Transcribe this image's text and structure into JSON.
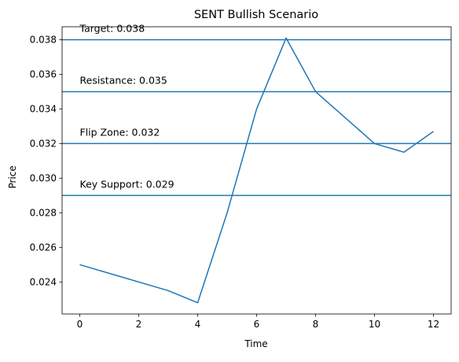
{
  "chart_data": {
    "type": "line",
    "title": "SENT Bullish Scenario",
    "xlabel": "Time",
    "ylabel": "Price",
    "x": [
      0,
      3,
      4,
      5,
      6,
      7,
      8,
      10,
      11,
      12
    ],
    "series": [
      {
        "values": [
          0.025,
          0.0235,
          0.0228,
          0.028,
          0.034,
          0.0381,
          0.035,
          0.032,
          0.0315,
          0.0327
        ]
      }
    ],
    "hlines": [
      {
        "value": 0.038,
        "label": "Target: 0.038"
      },
      {
        "value": 0.035,
        "label": "Resistance: 0.035"
      },
      {
        "value": 0.032,
        "label": "Flip Zone: 0.032"
      },
      {
        "value": 0.029,
        "label": "Key Support: 0.029"
      }
    ],
    "xlim": [
      -0.6,
      12.6
    ],
    "ylim": [
      0.02215,
      0.03875
    ],
    "xticks": [
      0,
      2,
      4,
      6,
      8,
      10,
      12
    ],
    "yticks": [
      0.024,
      0.026,
      0.028,
      0.03,
      0.032,
      0.034,
      0.036,
      0.038
    ],
    "ytick_labels": [
      "0.024",
      "0.026",
      "0.028",
      "0.030",
      "0.032",
      "0.034",
      "0.036",
      "0.038"
    ],
    "xtick_labels": [
      "0",
      "2",
      "4",
      "6",
      "8",
      "10",
      "12"
    ],
    "grid": false,
    "colors": {
      "line": "#1f77b4",
      "hline": "#1f77b4",
      "axes": "#000000"
    }
  }
}
